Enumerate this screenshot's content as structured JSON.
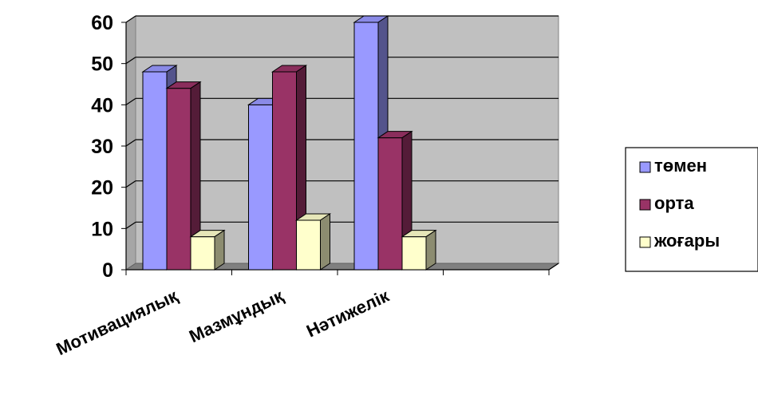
{
  "chart_data": {
    "type": "bar",
    "categories": [
      "Мотивациялық",
      "Мазмұндық",
      "Нәтижелік"
    ],
    "series": [
      {
        "name": "төмен",
        "values": [
          48,
          40,
          60
        ],
        "color": "#9999ff"
      },
      {
        "name": "орта",
        "values": [
          44,
          48,
          32
        ],
        "color": "#993366"
      },
      {
        "name": "жоғары",
        "values": [
          8,
          12,
          8
        ],
        "color": "#ffffcc"
      }
    ],
    "y_ticks": [
      "0",
      "10",
      "20",
      "30",
      "40",
      "50",
      "60"
    ],
    "ylim": [
      0,
      60
    ],
    "grid": true,
    "style": "3d-clustered-column",
    "legend_position": "right",
    "wall_color": "#c0c0c0"
  }
}
